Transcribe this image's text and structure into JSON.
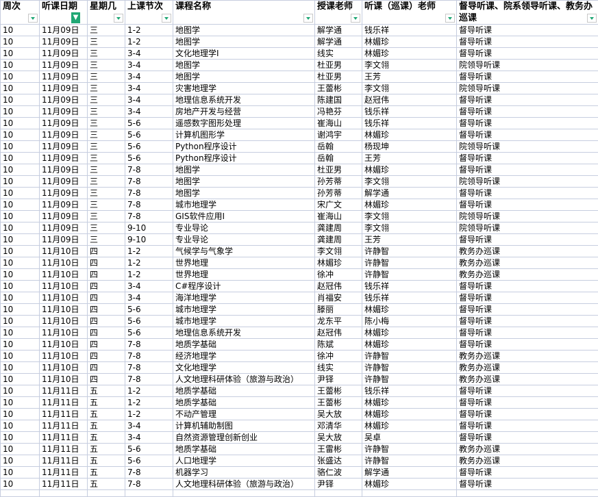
{
  "headers": [
    "周次",
    "听课日期",
    "星期几",
    "上课节次",
    "课程名称",
    "授课老师",
    "听课（巡课）老师",
    "督导听课、院系领导听课、教务办巡课"
  ],
  "filtered_column": "听课日期",
  "accent_color": "#1fa774",
  "rows": [
    [
      "10",
      "11月09日",
      "三",
      "1-2",
      "地图学",
      "解学通",
      "钱乐祥",
      "督导听课"
    ],
    [
      "10",
      "11月09日",
      "三",
      "1-2",
      "地图学",
      "解学通",
      "林媚珍",
      "督导听课"
    ],
    [
      "10",
      "11月09日",
      "三",
      "3-4",
      "文化地理学I",
      "线实",
      "林媚珍",
      "督导听课"
    ],
    [
      "10",
      "11月09日",
      "三",
      "3-4",
      "地图学",
      "杜亚男",
      "李文翎",
      "院领导听课"
    ],
    [
      "10",
      "11月09日",
      "三",
      "3-4",
      "地图学",
      "杜亚男",
      "王芳",
      "督导听课"
    ],
    [
      "10",
      "11月09日",
      "三",
      "3-4",
      "灾害地理学",
      "王蕾彬",
      "李文翎",
      "院领导听课"
    ],
    [
      "10",
      "11月09日",
      "三",
      "3-4",
      "地理信息系统开发",
      "陈建国",
      "赵冠伟",
      "督导听课"
    ],
    [
      "10",
      "11月09日",
      "三",
      "3-4",
      "房地产开发与经营",
      "冯艳芬",
      "钱乐祥",
      "督导听课"
    ],
    [
      "10",
      "11月09日",
      "三",
      "5-6",
      "遥感数字图形处理",
      "崔海山",
      "钱乐祥",
      "督导听课"
    ],
    [
      "10",
      "11月09日",
      "三",
      "5-6",
      "计算机图形学",
      "谢鸿宇",
      "林媚珍",
      "督导听课"
    ],
    [
      "10",
      "11月09日",
      "三",
      "5-6",
      "Python程序设计",
      "岳翰",
      "杨现坤",
      "院领导听课"
    ],
    [
      "10",
      "11月09日",
      "三",
      "5-6",
      "Python程序设计",
      "岳翰",
      "王芳",
      "督导听课"
    ],
    [
      "10",
      "11月09日",
      "三",
      "7-8",
      "地图学",
      "杜亚男",
      "林媚珍",
      "督导听课"
    ],
    [
      "10",
      "11月09日",
      "三",
      "7-8",
      "地图学",
      "孙芳蒂",
      "李文翎",
      "院领导听课"
    ],
    [
      "10",
      "11月09日",
      "三",
      "7-8",
      "地图学",
      "孙芳蒂",
      "解学通",
      "督导听课"
    ],
    [
      "10",
      "11月09日",
      "三",
      "7-8",
      "城市地理学",
      "宋广文",
      "林媚珍",
      "督导听课"
    ],
    [
      "10",
      "11月09日",
      "三",
      "7-8",
      "GIS软件应用I",
      "崔海山",
      "李文翎",
      "院领导听课"
    ],
    [
      "10",
      "11月09日",
      "三",
      "9-10",
      "专业导论",
      "龚建周",
      "李文翎",
      "院领导听课"
    ],
    [
      "10",
      "11月09日",
      "三",
      "9-10",
      "专业导论",
      "龚建周",
      "王芳",
      "督导听课"
    ],
    [
      "10",
      "11月10日",
      "四",
      "1-2",
      "气候学与气象学",
      "李文翎",
      "许静智",
      "教务办巡课"
    ],
    [
      "10",
      "11月10日",
      "四",
      "1-2",
      "世界地理",
      "林媚珍",
      "许静智",
      "教务办巡课"
    ],
    [
      "10",
      "11月10日",
      "四",
      "1-2",
      "世界地理",
      "徐冲",
      "许静智",
      "教务办巡课"
    ],
    [
      "10",
      "11月10日",
      "四",
      "3-4",
      "C#程序设计",
      "赵冠伟",
      "钱乐祥",
      "督导听课"
    ],
    [
      "10",
      "11月10日",
      "四",
      "3-4",
      "海洋地理学",
      "肖福安",
      "钱乐祥",
      "督导听课"
    ],
    [
      "10",
      "11月10日",
      "四",
      "5-6",
      "城市地理学",
      "滕丽",
      "林媚珍",
      "督导听课"
    ],
    [
      "10",
      "11月10日",
      "四",
      "5-6",
      "城市地理学",
      "龙东平",
      "陈小梅",
      "督导听课"
    ],
    [
      "10",
      "11月10日",
      "四",
      "5-6",
      "地理信息系统开发",
      "赵冠伟",
      "林媚珍",
      "督导听课"
    ],
    [
      "10",
      "11月10日",
      "四",
      "7-8",
      "地质学基础",
      "陈斌",
      "林媚珍",
      "督导听课"
    ],
    [
      "10",
      "11月10日",
      "四",
      "7-8",
      "经济地理学",
      "徐冲",
      "许静智",
      "教务办巡课"
    ],
    [
      "10",
      "11月10日",
      "四",
      "7-8",
      "文化地理学",
      "线实",
      "许静智",
      "教务办巡课"
    ],
    [
      "10",
      "11月10日",
      "四",
      "7-8",
      "人文地理科研体验（旅游与政治）",
      "尹铎",
      "许静智",
      "教务办巡课"
    ],
    [
      "10",
      "11月11日",
      "五",
      "1-2",
      "地质学基础",
      "王蕾彬",
      "钱乐祥",
      "督导听课"
    ],
    [
      "10",
      "11月11日",
      "五",
      "1-2",
      "地质学基础",
      "王蕾彬",
      "林媚珍",
      "督导听课"
    ],
    [
      "10",
      "11月11日",
      "五",
      "1-2",
      "不动产管理",
      "吴大放",
      "林媚珍",
      "督导听课"
    ],
    [
      "10",
      "11月11日",
      "五",
      "3-4",
      "计算机辅助制图",
      "邓清华",
      "林媚珍",
      "督导听课"
    ],
    [
      "10",
      "11月11日",
      "五",
      "3-4",
      "自然资源管理创新创业",
      "吴大放",
      "吴卓",
      "督导听课"
    ],
    [
      "10",
      "11月11日",
      "五",
      "5-6",
      "地质学基础",
      "王雷彬",
      "许静智",
      "教务办巡课"
    ],
    [
      "10",
      "11月11日",
      "五",
      "5-6",
      "人口地理学",
      "张盛达",
      "许静智",
      "教务办巡课"
    ],
    [
      "10",
      "11月11日",
      "五",
      "7-8",
      "机器学习",
      "骆仁波",
      "解学通",
      "督导听课"
    ],
    [
      "10",
      "11月11日",
      "五",
      "7-8",
      "人文地理科研体验（旅游与政治）",
      "尹铎",
      "林媚珍",
      "督导听课"
    ]
  ]
}
